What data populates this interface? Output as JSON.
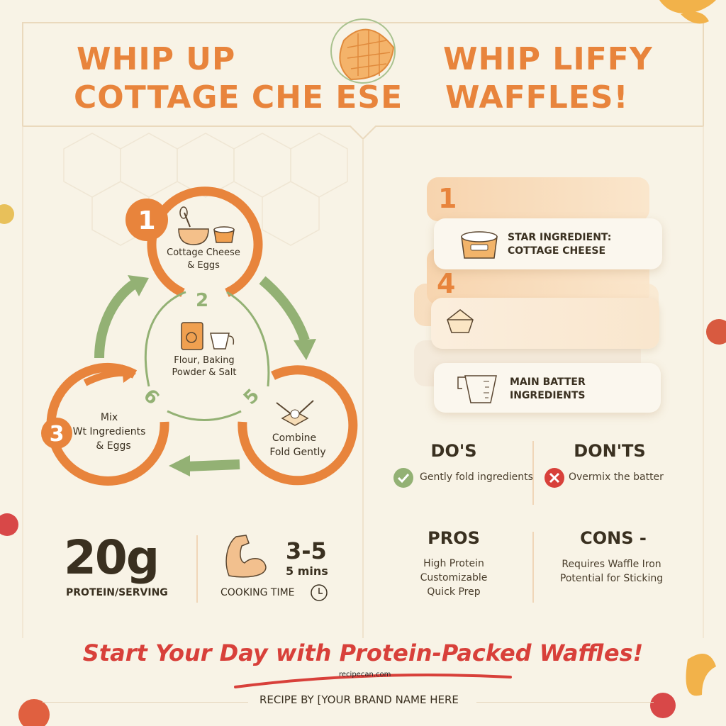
{
  "header": {
    "title_left_line1": "WHIP UP",
    "title_left_line2": "COTTAGE CHE ESE",
    "title_right_line1": "WHIP LIFFY",
    "title_right_line2": "WAFFLES!"
  },
  "colors": {
    "orange": "#e8843c",
    "green": "#93b174",
    "dark": "#3a3020",
    "red": "#d8403a",
    "background": "#f8f3e6"
  },
  "cycle": {
    "steps": [
      {
        "number": "1",
        "label_line1": "Cottage Cheese",
        "label_line2": "& Eggs",
        "icons": [
          "whisk-bowl-icon",
          "cottage-cheese-tub-icon"
        ]
      },
      {
        "number": "2",
        "label_line1": "Flour, Baking",
        "label_line2": "Powder & Salt",
        "icons": [
          "flour-bag-icon",
          "measuring-cup-icon"
        ]
      },
      {
        "number": "3",
        "label_line1": "Mix",
        "label_line2": "Wt Ingredients",
        "label_line3": "& Eggs"
      },
      {
        "number": "5",
        "label_line1": "Combine",
        "label_line2": "Fold Gently",
        "icons": [
          "spatula-fold-icon"
        ]
      },
      {
        "number": "6"
      }
    ]
  },
  "stats": {
    "protein_value": "20g",
    "protein_label": "PROTEIN/SERVING",
    "time_value": "3-5",
    "time_unit": "5 mins",
    "time_label": "COOKING TIME"
  },
  "ingredients": {
    "numbers": [
      "1",
      "4"
    ],
    "cards": [
      {
        "label_line1": "STAR INGREDIENT:",
        "label_line2": "COTTAGE CHEESE",
        "icon": "cottage-cheese-tub-icon"
      },
      {
        "label_line1": "",
        "label_line2": "",
        "icon": "flour-scoop-icon"
      },
      {
        "label_line1": "MAIN BATTER",
        "label_line2": "INGREDIENTS",
        "icon": "measuring-cup-icon"
      }
    ]
  },
  "dos": {
    "title": "DO'S",
    "item": "Gently fold ingredients"
  },
  "donts": {
    "title": "DON'TS",
    "item": "Overmix the batter"
  },
  "pros": {
    "title": "PROS",
    "items": [
      "High Protein",
      "Customizable",
      "Quick Prep"
    ]
  },
  "cons": {
    "title": "CONS -",
    "items": [
      "Requires Waffle Iron",
      "Potential for Sticking"
    ]
  },
  "footer": {
    "tagline": "Start Your Day with Protein-Packed Waffles!",
    "watermark": "recipecan.com",
    "credit": "RECIPE BY [YOUR BRAND NAME HERE"
  }
}
